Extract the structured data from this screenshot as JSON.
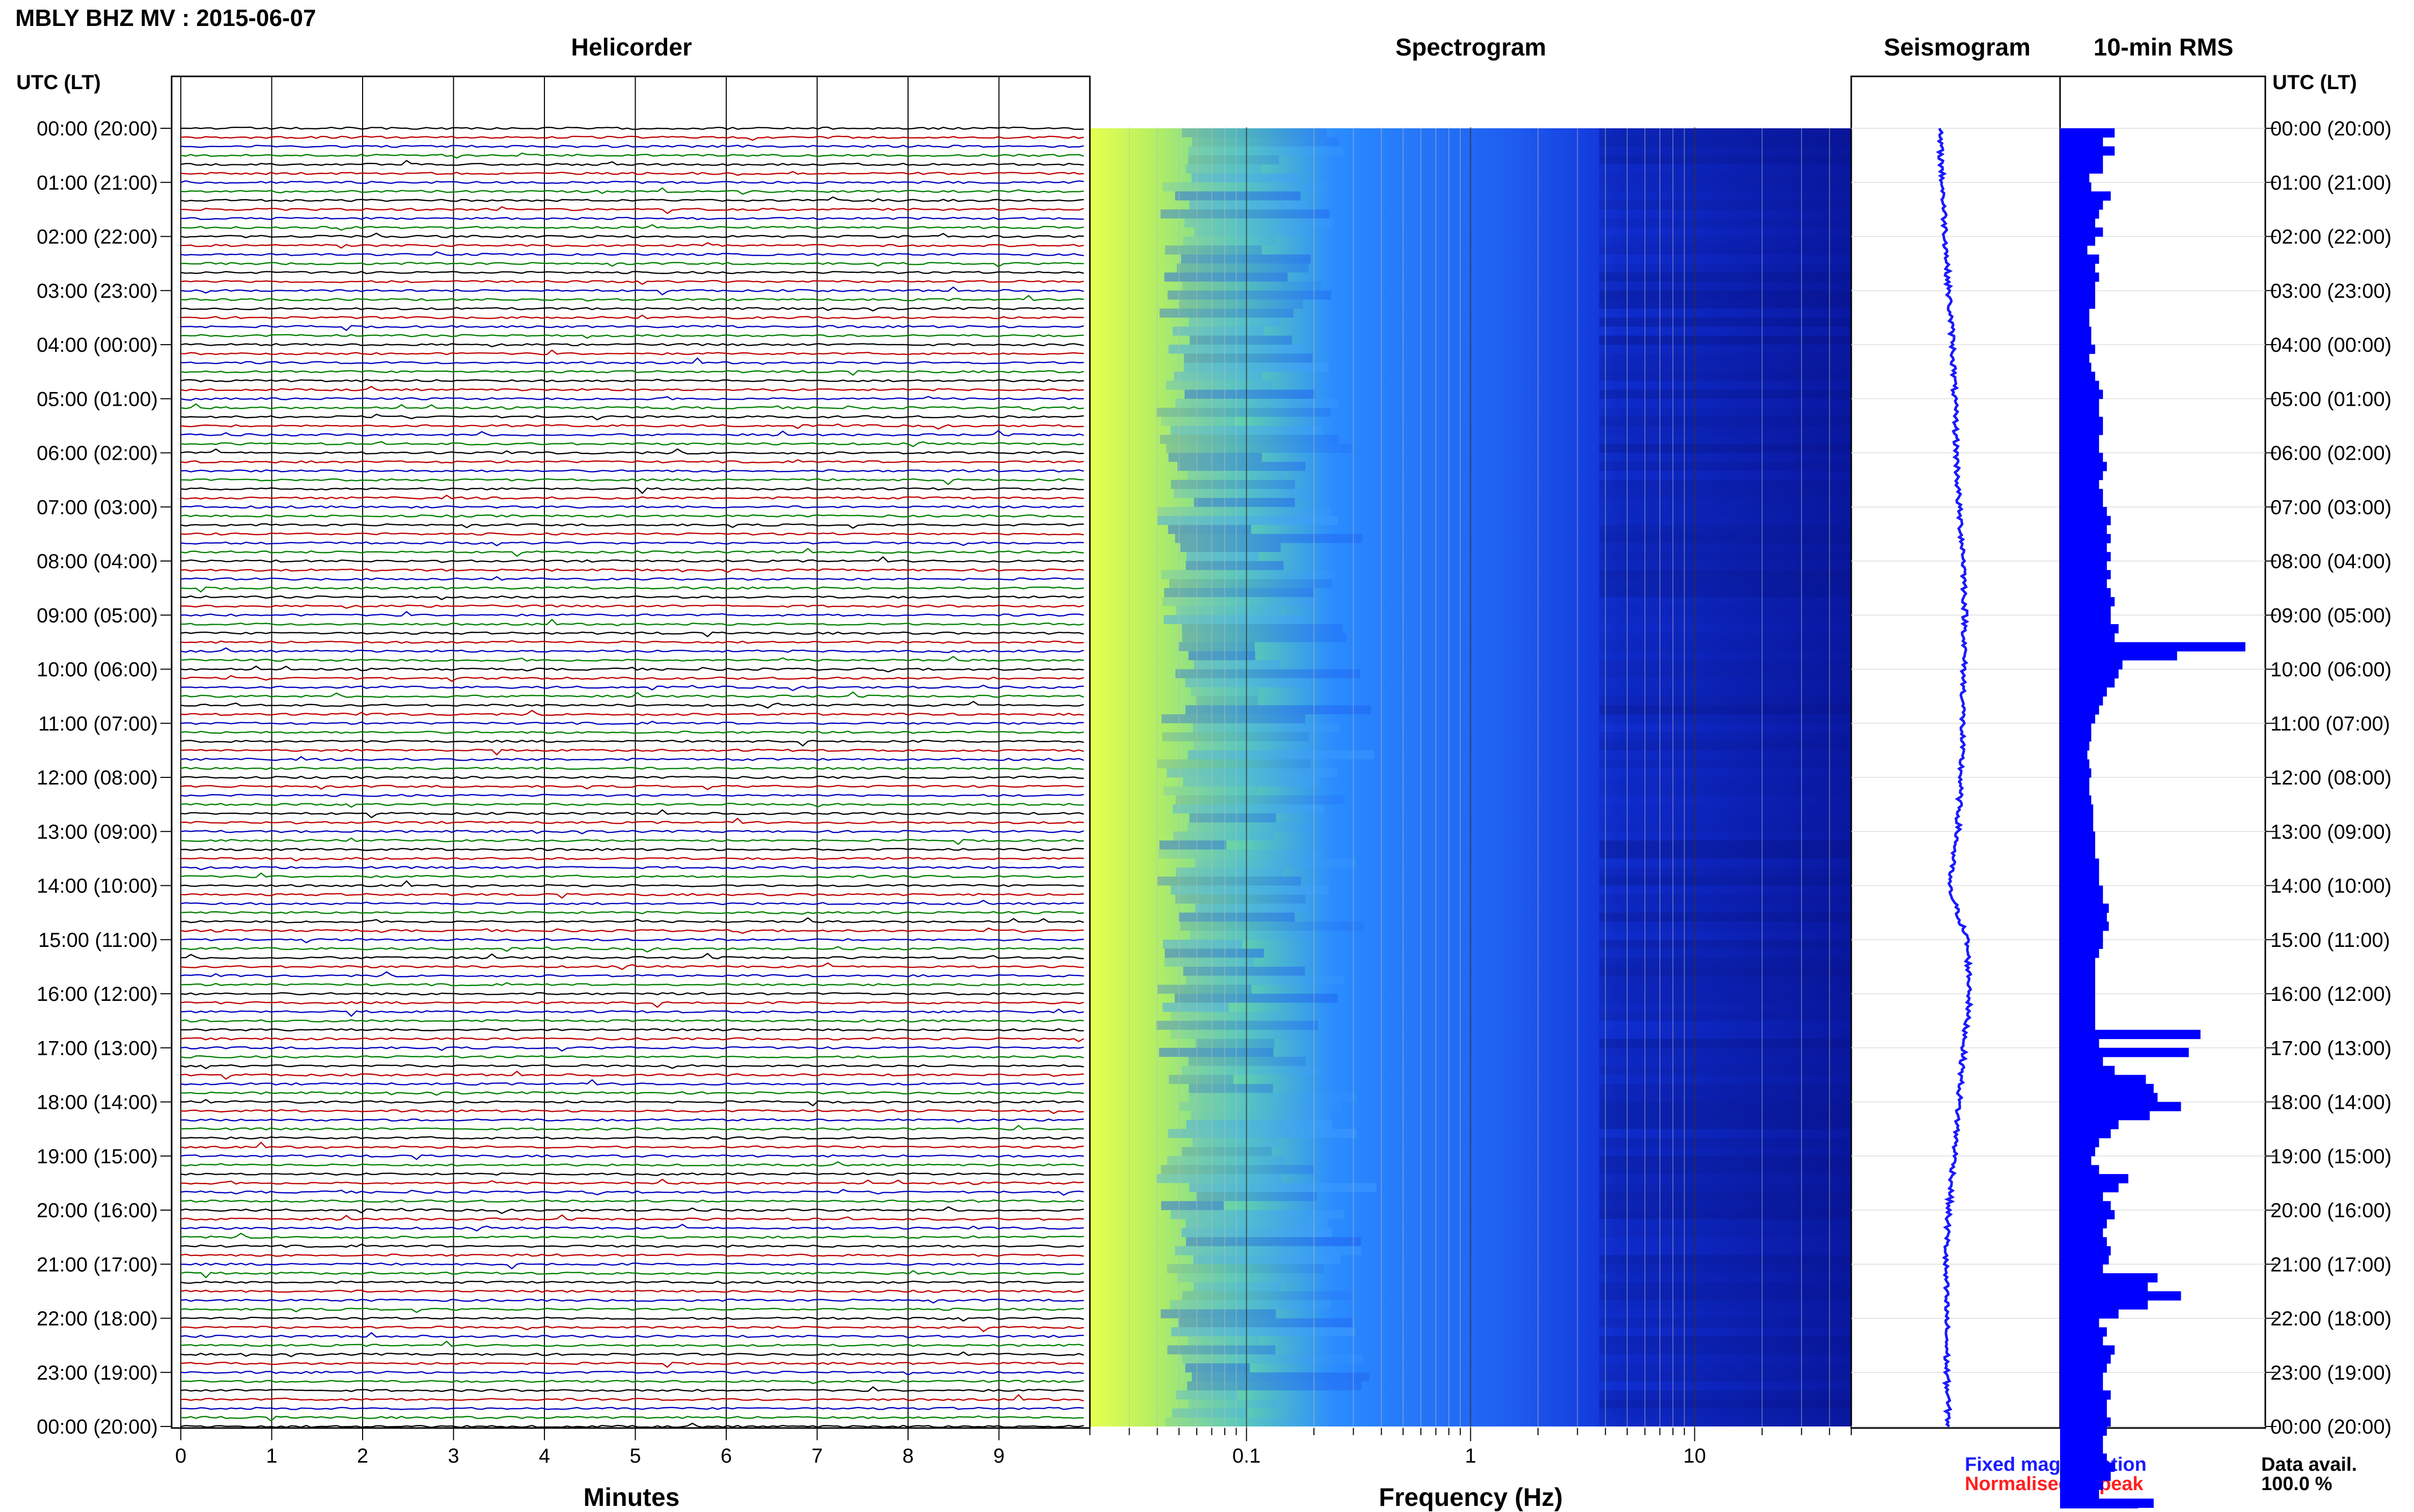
{
  "header": {
    "title": "MBLY BHZ MV : 2015-06-07"
  },
  "panels": {
    "helicorder": "Helicorder",
    "spectrogram": "Spectrogram",
    "seismogram": "Seismogram",
    "rms": "10-min RMS"
  },
  "axis_labels": {
    "time_left": "UTC (LT)",
    "time_right": "UTC (LT)",
    "minutes": "Minutes",
    "frequency": "Frequency (Hz)"
  },
  "legend": {
    "fixed": "Fixed magnification",
    "normalised": "Normalised to peak",
    "avail_label": "Data avail.",
    "avail_value": "100.0 %"
  },
  "colors": {
    "trace_colors": [
      "#000000",
      "#c00000",
      "#0000c0",
      "#008000"
    ],
    "seismogram": "#1a1aff",
    "rms": "#0000ff",
    "spectrogram_low": "#00008b",
    "spectrogram_high": "#ffff40"
  },
  "chart_data": [
    {
      "type": "line",
      "title": "Helicorder",
      "xlabel": "Minutes",
      "ylabel": "UTC (LT)",
      "x_ticks": [
        "0",
        "1",
        "2",
        "3",
        "4",
        "5",
        "6",
        "7",
        "8",
        "9"
      ],
      "xlim": [
        0,
        10
      ],
      "y_ticks": [
        "00:00 (20:00)",
        "01:00 (21:00)",
        "02:00 (22:00)",
        "03:00 (23:00)",
        "04:00 (00:00)",
        "05:00 (01:00)",
        "06:00 (02:00)",
        "07:00 (03:00)",
        "08:00 (04:00)",
        "09:00 (05:00)",
        "10:00 (06:00)",
        "11:00 (07:00)",
        "12:00 (08:00)",
        "13:00 (09:00)",
        "14:00 (10:00)",
        "15:00 (11:00)",
        "16:00 (12:00)",
        "17:00 (13:00)",
        "18:00 (14:00)",
        "19:00 (15:00)",
        "20:00 (16:00)",
        "21:00 (17:00)",
        "22:00 (18:00)",
        "23:00 (19:00)",
        "00:00 (20:00)"
      ],
      "lines_per_hour": 6,
      "line_minutes": 10
    },
    {
      "type": "heatmap",
      "title": "Spectrogram",
      "xlabel": "Frequency (Hz)",
      "x_scale": "log",
      "x_ticks": [
        "0.1",
        "1",
        "10"
      ],
      "xlim": [
        0.02,
        50
      ],
      "ylim_hours": [
        0,
        24
      ]
    },
    {
      "type": "line",
      "title": "Seismogram",
      "description_values": "slow drift offsets per hour",
      "hours": [
        0,
        1,
        2,
        3,
        4,
        5,
        6,
        7,
        8,
        9,
        10,
        11,
        12,
        13,
        14,
        15,
        16,
        17,
        18,
        19,
        20,
        21,
        22,
        23,
        24
      ],
      "offset": [
        -0.1,
        -0.05,
        0.0,
        0.05,
        0.12,
        0.15,
        0.18,
        0.22,
        0.3,
        0.32,
        0.3,
        0.28,
        0.25,
        0.2,
        0.05,
        0.35,
        0.4,
        0.3,
        0.22,
        0.15,
        0.05,
        0.0,
        0.02,
        0.02,
        0.05
      ]
    },
    {
      "type": "bar",
      "title": "10-min RMS",
      "orientation": "horizontal",
      "xlim": [
        0,
        1
      ],
      "values": [
        0.28,
        0.22,
        0.28,
        0.22,
        0.22,
        0.15,
        0.16,
        0.26,
        0.22,
        0.2,
        0.18,
        0.22,
        0.18,
        0.14,
        0.2,
        0.18,
        0.2,
        0.18,
        0.18,
        0.18,
        0.15,
        0.15,
        0.16,
        0.16,
        0.18,
        0.15,
        0.16,
        0.18,
        0.2,
        0.22,
        0.2,
        0.2,
        0.22,
        0.22,
        0.2,
        0.2,
        0.22,
        0.24,
        0.22,
        0.2,
        0.22,
        0.22,
        0.24,
        0.26,
        0.24,
        0.26,
        0.24,
        0.26,
        0.24,
        0.26,
        0.24,
        0.26,
        0.28,
        0.26,
        0.26,
        0.3,
        0.28,
        0.95,
        0.6,
        0.32,
        0.3,
        0.28,
        0.24,
        0.22,
        0.2,
        0.18,
        0.16,
        0.16,
        0.15,
        0.14,
        0.15,
        0.16,
        0.15,
        0.15,
        0.16,
        0.17,
        0.17,
        0.17,
        0.18,
        0.18,
        0.18,
        0.2,
        0.2,
        0.2,
        0.22,
        0.22,
        0.25,
        0.24,
        0.25,
        0.22,
        0.22,
        0.2,
        0.18,
        0.18,
        0.18,
        0.18,
        0.18,
        0.18,
        0.18,
        0.18,
        0.72,
        0.2,
        0.66,
        0.22,
        0.28,
        0.44,
        0.48,
        0.5,
        0.62,
        0.46,
        0.3,
        0.26,
        0.2,
        0.18,
        0.16,
        0.2,
        0.35,
        0.3,
        0.22,
        0.26,
        0.28,
        0.24,
        0.22,
        0.24,
        0.26,
        0.25,
        0.22,
        0.5,
        0.45,
        0.62,
        0.45,
        0.3,
        0.2,
        0.24,
        0.22,
        0.28,
        0.26,
        0.24,
        0.22,
        0.22,
        0.26,
        0.24,
        0.24,
        0.26,
        0.24,
        0.22,
        0.22,
        0.24,
        0.28,
        0.26,
        0.22,
        0.2,
        0.48,
        0.4,
        0.36,
        0.24,
        0.44,
        0.34,
        0.58,
        0.24,
        0.22
      ]
    }
  ]
}
